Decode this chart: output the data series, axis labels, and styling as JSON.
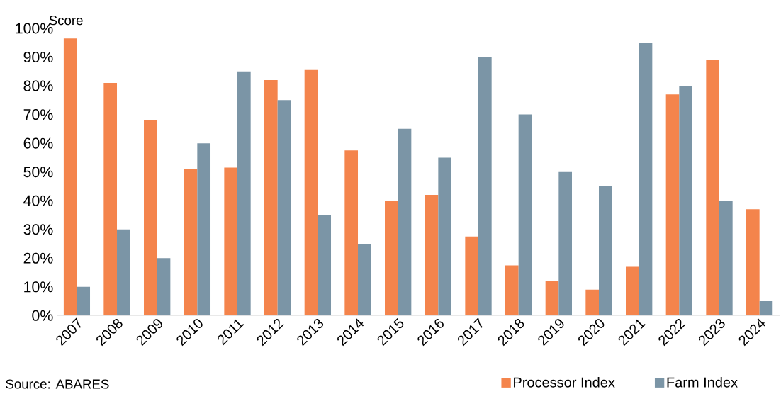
{
  "chart_data": {
    "type": "bar",
    "ylabel": "Score",
    "categories": [
      "2007",
      "2008",
      "2009",
      "2010",
      "2011",
      "2012",
      "2013",
      "2014",
      "2015",
      "2016",
      "2017",
      "2018",
      "2019",
      "2020",
      "2021",
      "2022",
      "2023",
      "2024"
    ],
    "series": [
      {
        "name": "Processor Index",
        "color": "#f4844c",
        "values": [
          96.5,
          81,
          68,
          51,
          51.5,
          82,
          85.5,
          57.5,
          40,
          42,
          27.5,
          17.5,
          12,
          9,
          17,
          77,
          89,
          37
        ]
      },
      {
        "name": "Farm Index",
        "color": "#7b95a6",
        "values": [
          10,
          30,
          20,
          60,
          85,
          75,
          35,
          25,
          65,
          55,
          90,
          70,
          50,
          45,
          95,
          80,
          40,
          5
        ]
      }
    ],
    "ylim": [
      0,
      100
    ],
    "yticks": [
      {
        "value": 0,
        "label": "0%"
      },
      {
        "value": 10,
        "label": "10%"
      },
      {
        "value": 20,
        "label": "20%"
      },
      {
        "value": 30,
        "label": "30%"
      },
      {
        "value": 40,
        "label": "40%"
      },
      {
        "value": 50,
        "label": "50%"
      },
      {
        "value": 60,
        "label": "60%"
      },
      {
        "value": 70,
        "label": "70%"
      },
      {
        "value": 80,
        "label": "80%"
      },
      {
        "value": 90,
        "label": "90%"
      },
      {
        "value": 100,
        "label": "100%"
      }
    ],
    "legend": "bottom",
    "annotations": [
      "Source: ABARES"
    ]
  }
}
